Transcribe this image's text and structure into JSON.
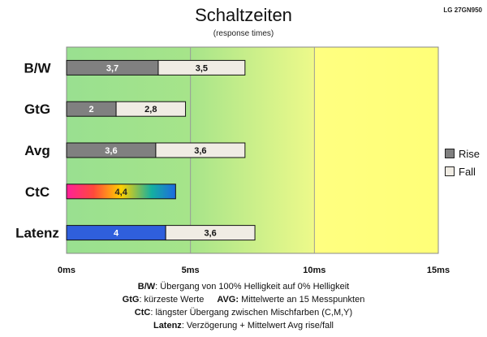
{
  "model": "LG 27GN950",
  "colors": {
    "rise": "#808080",
    "fall": "#f0ece4",
    "latenz_rise": "#2f5fdc",
    "zone_green": "#99e090",
    "zone_yellow": "#ffff80",
    "grid": "#999999"
  },
  "chart_data": {
    "type": "bar",
    "orientation": "horizontal",
    "stacked": true,
    "title": "Schaltzeiten",
    "subtitle": "(response times)",
    "categories": [
      "B/W",
      "GtG",
      "Avg",
      "CtC",
      "Latenz"
    ],
    "series": [
      {
        "name": "Rise",
        "values": [
          3.7,
          2,
          3.6,
          4.4,
          4
        ]
      },
      {
        "name": "Fall",
        "values": [
          3.5,
          2.8,
          3.6,
          0,
          3.6
        ]
      }
    ],
    "labels": {
      "Rise": [
        "3,7",
        "2",
        "3,6",
        "4,4",
        "4"
      ],
      "Fall": [
        "3,5",
        "2,8",
        "3,6",
        "",
        "3,6"
      ]
    },
    "xlim": [
      0,
      15
    ],
    "xticks": [
      0,
      5,
      10,
      15
    ],
    "xtick_labels": [
      "0ms",
      "5ms",
      "10ms",
      "15ms"
    ],
    "legend_position": "right",
    "grid": true
  },
  "footnotes": {
    "bw_key": "B/W",
    "bw_text": ":  Übergang von 100% Helligkeit auf 0% Helligkeit",
    "gtg_key": "GtG",
    "gtg_text": ": kürzeste  Werte",
    "avg_key": "AVG:",
    "avg_text": " Mittelwerte  an 15 Messpunkten",
    "ctc_key": "CtC",
    "ctc_text": ": längster Übergang  zwischen Mischfarben (C,M,Y)",
    "latenz_key": "Latenz",
    "latenz_text": ": Verzögerung  + Mittelwert Avg rise/fall"
  }
}
